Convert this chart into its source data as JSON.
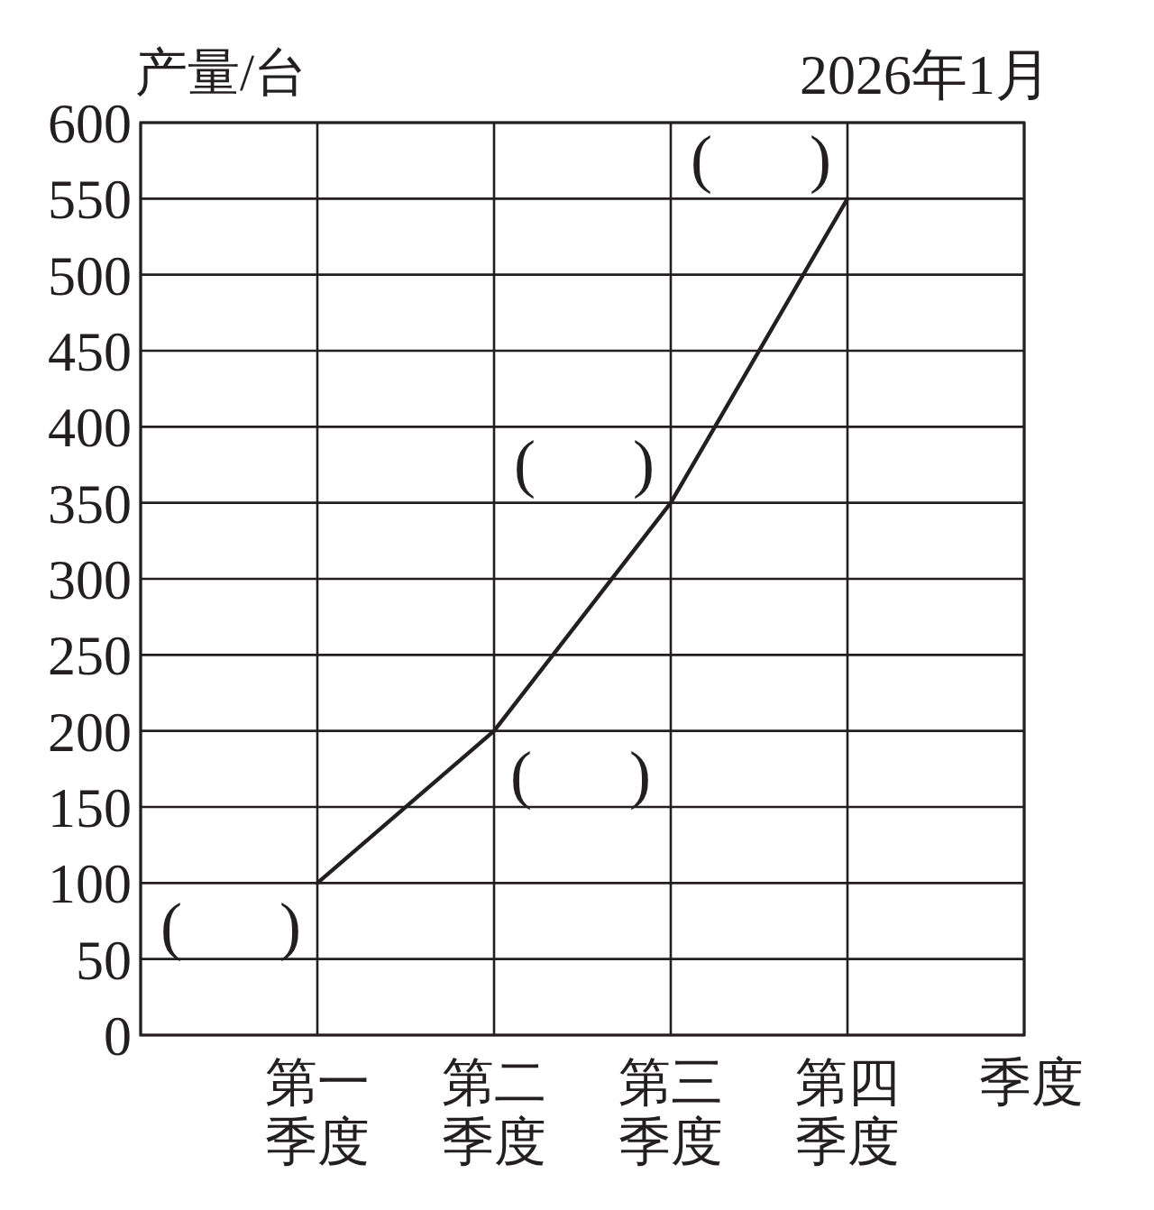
{
  "chart_data": {
    "type": "line",
    "subtitle": "2026年1月",
    "xlabel": "季度",
    "ylabel": "产量/台",
    "categories": [
      null,
      "第一季度",
      "第二季度",
      "第三季度",
      "第四季度",
      null
    ],
    "values": [
      null,
      100,
      200,
      350,
      550,
      null
    ],
    "color": "#231f20",
    "ylim": [
      0,
      600
    ],
    "yticks": [
      0,
      50,
      100,
      150,
      200,
      250,
      300,
      350,
      400,
      450,
      500,
      550,
      600
    ],
    "grid": true,
    "annotations": [
      {
        "text": "(      )",
        "x": "第一季度",
        "y": 100
      },
      {
        "text": "(      )",
        "x": "第二季度",
        "y": 200
      },
      {
        "text": "(      )",
        "x": "第三季度",
        "y": 350
      },
      {
        "text": "(      )",
        "x": "第四季度",
        "y": 550
      }
    ]
  }
}
